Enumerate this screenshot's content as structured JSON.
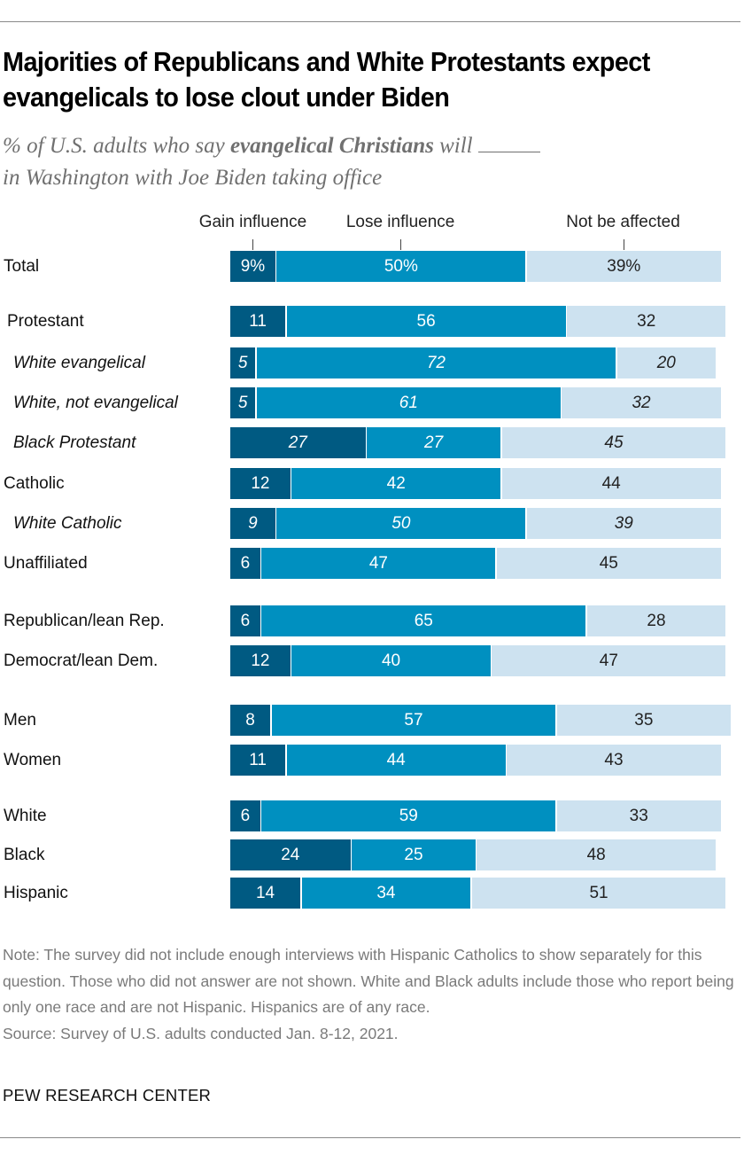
{
  "header": {
    "title": "Majorities of Republicans and White Protestants expect evangelicals to lose clout under Biden",
    "subtitle_part1": "% of U.S. adults who say ",
    "subtitle_bold": "evangelical Christians",
    "subtitle_part2": " will ",
    "subtitle_part3": " in Washington with Joe Biden taking office"
  },
  "chart_data": {
    "type": "bar",
    "orientation": "horizontal",
    "stacked": true,
    "title": "Majorities of Republicans and White Protestants expect evangelicals to lose clout under Biden",
    "subtitle": "% of U.S. adults who say evangelical Christians will ____ in Washington with Joe Biden taking office",
    "xlabel": "",
    "ylabel": "",
    "legend": {
      "placement": "top",
      "entries": [
        "Gain influence",
        "Lose influence",
        "Not be affected"
      ]
    },
    "colors": {
      "Gain influence": "#005a82",
      "Lose influence": "#0090c0",
      "Not be affected": "#cde2f0"
    },
    "unit": "%",
    "categories": [
      {
        "label": "Total",
        "italic": false,
        "indent": false,
        "group": 0
      },
      {
        "label": "Protestant",
        "italic": false,
        "indent": true,
        "group": 1
      },
      {
        "label": "White evangelical",
        "italic": true,
        "indent": true,
        "group": 1
      },
      {
        "label": "White, not evangelical",
        "italic": true,
        "indent": true,
        "group": 1
      },
      {
        "label": "Black Protestant",
        "italic": true,
        "indent": true,
        "group": 1
      },
      {
        "label": "Catholic",
        "italic": false,
        "indent": false,
        "group": 1
      },
      {
        "label": "White Catholic",
        "italic": true,
        "indent": true,
        "group": 1
      },
      {
        "label": "Unaffiliated",
        "italic": false,
        "indent": false,
        "group": 1
      },
      {
        "label": "Republican/lean Rep.",
        "italic": false,
        "indent": false,
        "group": 2
      },
      {
        "label": "Democrat/lean Dem.",
        "italic": false,
        "indent": false,
        "group": 2
      },
      {
        "label": "Men",
        "italic": false,
        "indent": false,
        "group": 3
      },
      {
        "label": "Women",
        "italic": false,
        "indent": false,
        "group": 3
      },
      {
        "label": "White",
        "italic": false,
        "indent": false,
        "group": 4
      },
      {
        "label": "Black",
        "italic": false,
        "indent": false,
        "group": 4
      },
      {
        "label": "Hispanic",
        "italic": false,
        "indent": false,
        "group": 4
      }
    ],
    "series": [
      {
        "name": "Gain influence",
        "values": [
          9,
          11,
          5,
          5,
          27,
          12,
          9,
          6,
          6,
          12,
          8,
          11,
          6,
          24,
          14
        ]
      },
      {
        "name": "Lose influence",
        "values": [
          50,
          56,
          72,
          61,
          27,
          42,
          50,
          47,
          65,
          40,
          57,
          44,
          59,
          25,
          34
        ]
      },
      {
        "name": "Not be affected",
        "values": [
          39,
          32,
          20,
          32,
          45,
          44,
          39,
          45,
          28,
          47,
          35,
          43,
          33,
          48,
          51
        ]
      }
    ],
    "data_labels_first_row_suffix": "%",
    "xlim": [
      0,
      100
    ]
  },
  "footer": {
    "note": "Note: The survey did not include enough interviews with Hispanic Catholics to show separately for this question. Those who did not answer are not shown. White and Black adults include those who report being only one race and are not Hispanic. Hispanics are of any race.",
    "source": "Source: Survey of U.S. adults conducted Jan. 8-12, 2021.",
    "brand": "PEW RESEARCH CENTER"
  }
}
